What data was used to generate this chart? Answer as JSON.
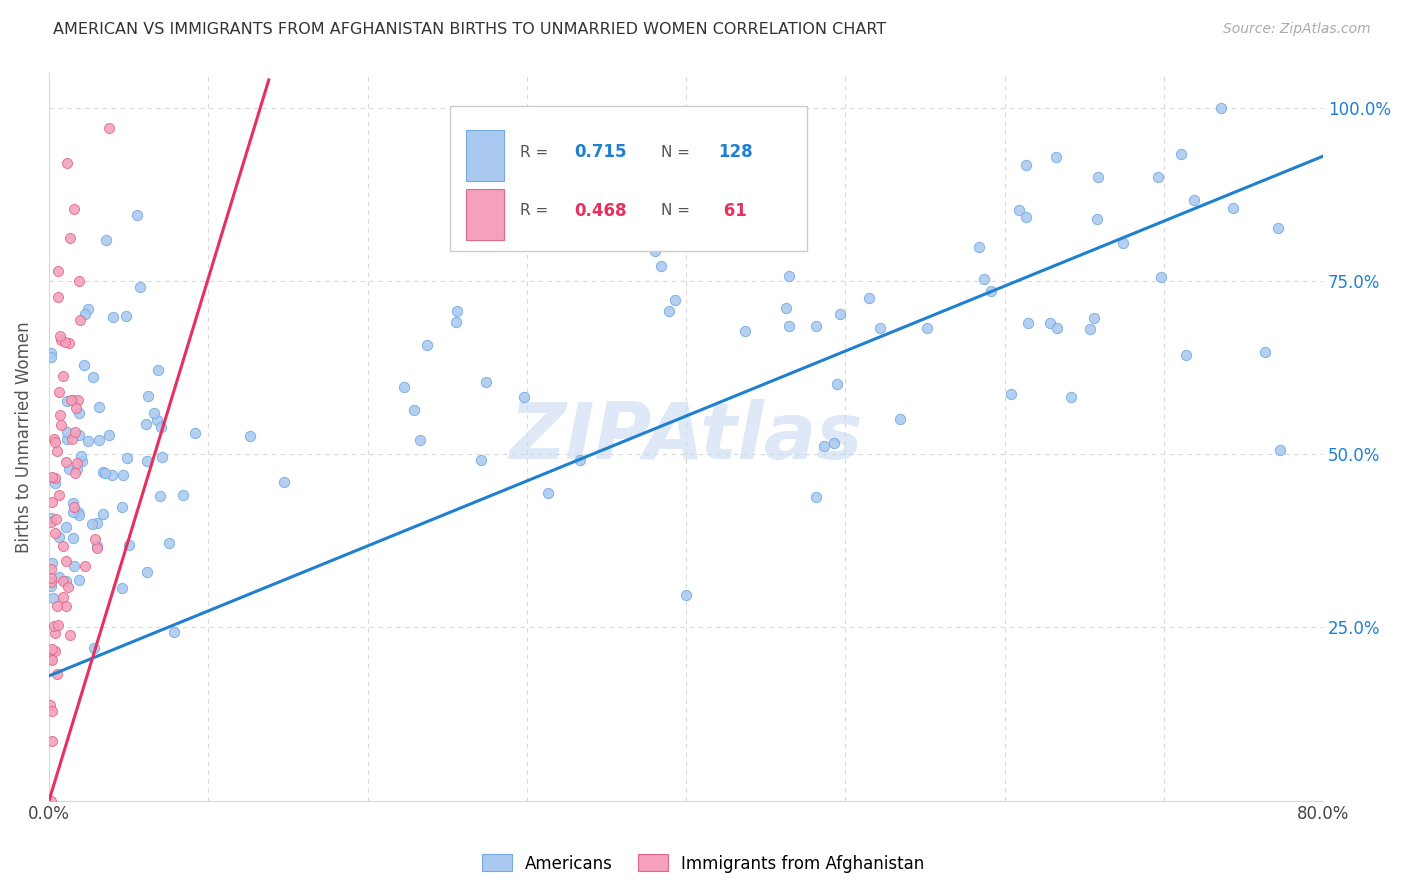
{
  "title": "AMERICAN VS IMMIGRANTS FROM AFGHANISTAN BIRTHS TO UNMARRIED WOMEN CORRELATION CHART",
  "source": "Source: ZipAtlas.com",
  "ylabel": "Births to Unmarried Women",
  "R_american": 0.715,
  "N_american": 128,
  "R_afghan": 0.468,
  "N_afghan": 61,
  "american_color": "#aac9f0",
  "american_edge_color": "#74a9e0",
  "afghan_color": "#f5a0bc",
  "afghan_edge_color": "#e06888",
  "american_line_color": "#2080d0",
  "afghan_line_color": "#e83060",
  "watermark": "ZIPAtlas",
  "watermark_color": "#c8daf0",
  "grid_color": "#d8d8d8",
  "xmin": 0.0,
  "xmax": 0.8,
  "ymin": 0.0,
  "ymax": 1.05,
  "blue_line_x0": 0.0,
  "blue_line_x1": 0.8,
  "blue_line_y0": 0.18,
  "blue_line_y1": 0.93,
  "pink_line_x0": 0.0,
  "pink_line_x1": 0.138,
  "pink_line_y0": 0.0,
  "pink_line_y1": 1.04,
  "right_y_color": "#2080d0",
  "title_fontsize": 11.5,
  "source_fontsize": 10,
  "scatter_size_am": 55,
  "scatter_size_af": 52
}
